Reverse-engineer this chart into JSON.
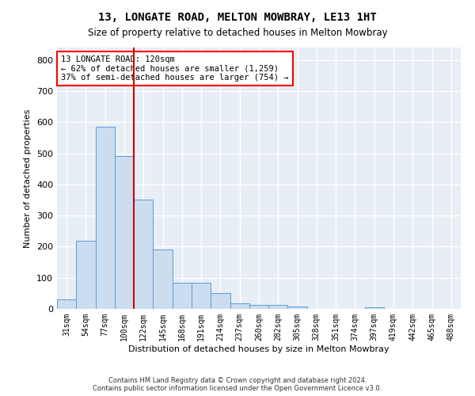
{
  "title_line1": "13, LONGATE ROAD, MELTON MOWBRAY, LE13 1HT",
  "title_line2": "Size of property relative to detached houses in Melton Mowbray",
  "xlabel": "Distribution of detached houses by size in Melton Mowbray",
  "ylabel": "Number of detached properties",
  "bar_color": "#ccddf0",
  "bar_edge_color": "#5b9bd5",
  "background_color": "#e8eef5",
  "grid_color": "#ffffff",
  "annotation_line1": "13 LONGATE ROAD: 120sqm",
  "annotation_line2": "← 62% of detached houses are smaller (1,259)",
  "annotation_line3": "37% of semi-detached houses are larger (754) →",
  "vline_color": "#cc0000",
  "categories": [
    "31sqm",
    "54sqm",
    "77sqm",
    "100sqm",
    "122sqm",
    "145sqm",
    "168sqm",
    "191sqm",
    "214sqm",
    "237sqm",
    "260sqm",
    "282sqm",
    "305sqm",
    "328sqm",
    "351sqm",
    "374sqm",
    "397sqm",
    "419sqm",
    "442sqm",
    "465sqm",
    "488sqm"
  ],
  "values": [
    30,
    220,
    585,
    490,
    350,
    190,
    85,
    85,
    52,
    18,
    13,
    13,
    8,
    0,
    0,
    0,
    5,
    0,
    0,
    0,
    0
  ],
  "ylim": [
    0,
    840
  ],
  "yticks": [
    0,
    100,
    200,
    300,
    400,
    500,
    600,
    700,
    800
  ],
  "footer_line1": "Contains HM Land Registry data © Crown copyright and database right 2024.",
  "footer_line2": "Contains public sector information licensed under the Open Government Licence v3.0.",
  "fig_width": 6.0,
  "fig_height": 5.0,
  "fig_dpi": 100
}
